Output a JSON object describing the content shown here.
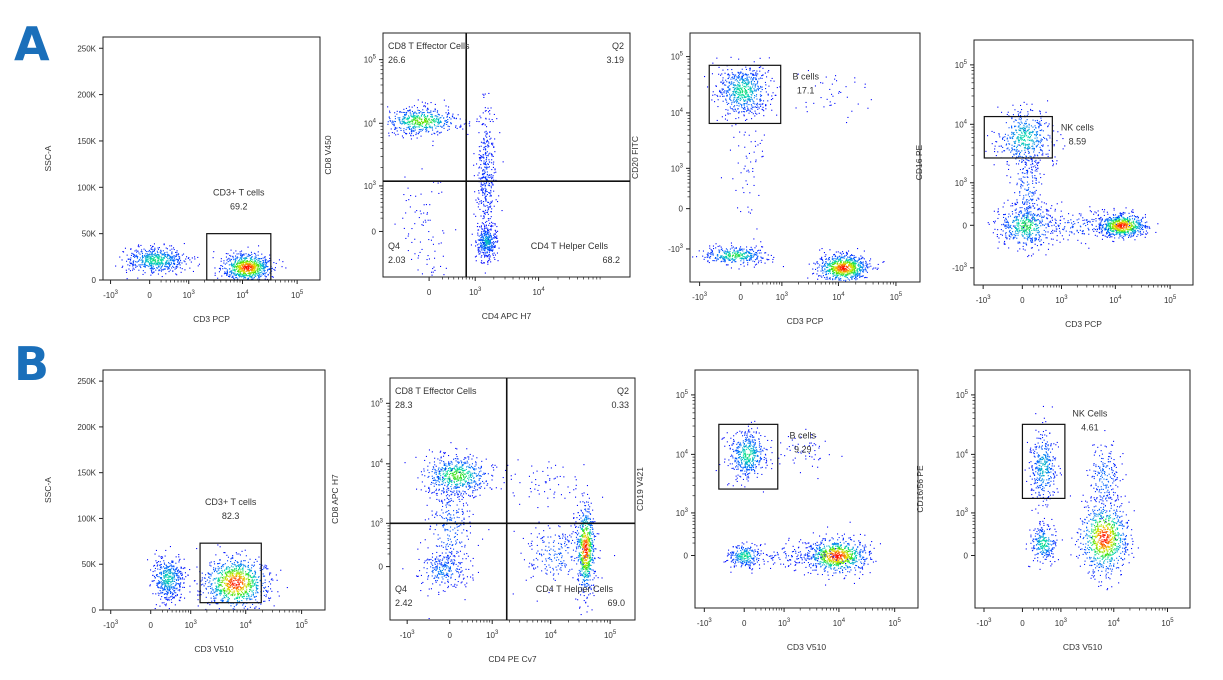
{
  "colors": {
    "letter": "#1a6fba",
    "frame": "#222222"
  },
  "chart_data": [
    {
      "type": "scatter",
      "row": "A",
      "letter": "A",
      "xlabel": "CD3 PCP",
      "ylabel": "SSC-A",
      "xscale": "log",
      "yscale": "linear",
      "xlim": [
        -1400,
        262144
      ],
      "ylim": [
        0,
        262144
      ],
      "xticks": [
        -1000,
        0,
        1000,
        10000,
        100000
      ],
      "yticks": [
        0,
        50000,
        100000,
        150000,
        200000,
        250000
      ],
      "populations": [
        {
          "x": 100,
          "y": 22000,
          "sx": 0.28,
          "sy": 7000,
          "n": 550,
          "w": 0.55
        },
        {
          "x": 12000,
          "y": 14000,
          "sx": 0.22,
          "sy": 7500,
          "n": 750,
          "w": 1
        }
      ],
      "gates": [
        {
          "type": "rect",
          "name": "CD3+ T cells",
          "value": "69.2",
          "x": [
            2200,
            33000
          ],
          "y": [
            0,
            50000
          ],
          "label": "above"
        }
      ]
    },
    {
      "type": "scatter",
      "row": "A",
      "xlabel": "CD4 APC H7",
      "ylabel": "CD8 V450",
      "xscale": "log",
      "yscale": "log",
      "xlim": [
        -1000,
        262144
      ],
      "ylim": [
        -1000,
        262144
      ],
      "xticks": [
        0,
        1000,
        10000
      ],
      "yticks": [
        0,
        1000,
        10000,
        100000
      ],
      "populations": [
        {
          "x": -120,
          "y": 11000,
          "sx": 0.28,
          "sy": 0.1,
          "n": 500,
          "w": 0.7
        },
        {
          "x": 1500,
          "y": -150,
          "sx": 0.08,
          "sy": 0.12,
          "n": 350,
          "w": 0.45
        },
        {
          "x": 1500,
          "y": 1500,
          "sx": 0.08,
          "sy": 0.55,
          "n": 380,
          "w": 0.15
        },
        {
          "x": -80,
          "y": -50,
          "sx": 0.18,
          "sy": 0.5,
          "n": 90,
          "w": 0.05
        }
      ],
      "quadrant": {
        "x": 700,
        "y": 1200
      },
      "gates": [
        {
          "type": "quad",
          "name": "CD8 T Effector Cells",
          "value": "26.6",
          "corner": "top-left"
        },
        {
          "type": "quad",
          "name": "Q2",
          "value": "3.19",
          "corner": "top-right"
        },
        {
          "type": "quad",
          "name": "Q4",
          "value": "2.03",
          "corner": "bottom-left"
        },
        {
          "type": "quad",
          "name": "CD4 T Helper Cells",
          "value": "68.2",
          "corner": "bottom-right"
        }
      ]
    },
    {
      "type": "scatter",
      "row": "A",
      "xlabel": "CD3 PCP",
      "ylabel": "CD20 FITC",
      "xscale": "log",
      "yscale": "log",
      "xlim": [
        -1500,
        262144
      ],
      "ylim": [
        -4000,
        262144
      ],
      "xticks": [
        -1000,
        0,
        1000,
        10000,
        100000
      ],
      "yticks": [
        -1000,
        0,
        1000,
        10000,
        100000
      ],
      "populations": [
        {
          "x": 30,
          "y": 25000,
          "sx": 0.22,
          "sy": 0.22,
          "n": 600,
          "w": 0.55
        },
        {
          "x": -100,
          "y": -1300,
          "sx": 0.28,
          "sy": 0.08,
          "n": 350,
          "w": 0.6
        },
        {
          "x": 12000,
          "y": -2200,
          "sx": 0.22,
          "sy": 0.12,
          "n": 750,
          "w": 1
        },
        {
          "x": 8000,
          "y": 20000,
          "sx": 0.35,
          "sy": 0.25,
          "n": 40,
          "w": 0.05
        },
        {
          "x": 100,
          "y": 1500,
          "sx": 0.15,
          "sy": 0.6,
          "n": 60,
          "w": 0.05
        }
      ],
      "gates": [
        {
          "type": "rect",
          "name": "B cells",
          "value": "17.1",
          "x": [
            -650,
            950
          ],
          "y": [
            6500,
            70000
          ],
          "label": "right"
        }
      ]
    },
    {
      "type": "scatter",
      "row": "A",
      "xlabel": "CD3 PCP",
      "ylabel": "CD16 PE",
      "xscale": "log",
      "yscale": "log",
      "xlim": [
        -1500,
        262144
      ],
      "ylim": [
        -2000,
        262144
      ],
      "xticks": [
        -1000,
        0,
        1000,
        10000,
        100000
      ],
      "yticks": [
        -1000,
        0,
        1000,
        10000,
        100000
      ],
      "populations": [
        {
          "x": 30,
          "y": 6000,
          "sx": 0.25,
          "sy": 0.25,
          "n": 450,
          "w": 0.5
        },
        {
          "x": 80,
          "y": 700,
          "sx": 0.15,
          "sy": 0.35,
          "n": 200,
          "w": 0.25
        },
        {
          "x": 60,
          "y": 0,
          "sx": 0.25,
          "sy": 0.18,
          "n": 450,
          "w": 0.6
        },
        {
          "x": 13000,
          "y": 0,
          "sx": 0.22,
          "sy": 0.1,
          "n": 700,
          "w": 1
        },
        {
          "x": 2000,
          "y": 0,
          "sx": 0.4,
          "sy": 0.12,
          "n": 150,
          "w": 0.2
        }
      ],
      "gates": [
        {
          "type": "rect",
          "name": "NK cells",
          "value": "8.59",
          "x": [
            -950,
            650
          ],
          "y": [
            2700,
            13500
          ],
          "label": "right"
        }
      ]
    },
    {
      "type": "scatter",
      "row": "B",
      "letter": "B",
      "xlabel": "CD3 V510",
      "ylabel": "SSC-A",
      "xscale": "log",
      "yscale": "linear",
      "xlim": [
        -1400,
        262144
      ],
      "ylim": [
        0,
        262144
      ],
      "xticks": [
        -1000,
        0,
        1000,
        10000,
        100000
      ],
      "yticks": [
        0,
        50000,
        100000,
        150000,
        200000,
        250000
      ],
      "populations": [
        {
          "x": 300,
          "y": 35000,
          "sx": 0.14,
          "sy": 12000,
          "n": 450,
          "w": 0.5
        },
        {
          "x": 6500,
          "y": 30000,
          "sx": 0.28,
          "sy": 14000,
          "n": 850,
          "w": 1
        }
      ],
      "gates": [
        {
          "type": "rect",
          "name": "CD3+ T cells",
          "value": "82.3",
          "x": [
            1500,
            19000
          ],
          "y": [
            8000,
            73000
          ],
          "label": "above"
        }
      ]
    },
    {
      "type": "scatter",
      "row": "B",
      "xlabel": "CD4 PE Cv7",
      "ylabel": "CD8 APC H7",
      "xscale": "log",
      "yscale": "log",
      "xlim": [
        -2000,
        262144
      ],
      "ylim": [
        -1500,
        262144
      ],
      "xticks": [
        -1000,
        0,
        1000,
        10000,
        100000
      ],
      "yticks": [
        0,
        1000,
        10000,
        100000
      ],
      "quadrant": {
        "x": 1800,
        "y": 1000
      },
      "populations": [
        {
          "x": 100,
          "y": 6500,
          "sx": 0.28,
          "sy": 0.16,
          "n": 550,
          "w": 0.65
        },
        {
          "x": 0,
          "y": 800,
          "sx": 0.18,
          "sy": 0.5,
          "n": 300,
          "w": 0.25
        },
        {
          "x": -100,
          "y": -50,
          "sx": 0.2,
          "sy": 0.15,
          "n": 200,
          "w": 0.35
        },
        {
          "x": 38000,
          "y": 300,
          "sx": 0.08,
          "sy": 0.35,
          "n": 650,
          "w": 1
        },
        {
          "x": 12000,
          "y": 200,
          "sx": 0.25,
          "sy": 0.25,
          "n": 200,
          "w": 0.25
        },
        {
          "x": 8000,
          "y": 5000,
          "sx": 0.35,
          "sy": 0.2,
          "n": 60,
          "w": 0.05
        }
      ],
      "gates": [
        {
          "type": "quad",
          "name": "CD8 T Effector Cells",
          "value": "28.3",
          "corner": "top-left"
        },
        {
          "type": "quad",
          "name": "Q2",
          "value": "0.33",
          "corner": "top-right"
        },
        {
          "type": "quad",
          "name": "Q4",
          "value": "2.42",
          "corner": "bottom-left"
        },
        {
          "type": "quad",
          "name": "CD4 T Helper Cells",
          "value": "69.0",
          "corner": "bottom-right"
        }
      ]
    },
    {
      "type": "scatter",
      "row": "B",
      "xlabel": "CD3 V510",
      "ylabel": "CD19 V421",
      "xscale": "log",
      "yscale": "log",
      "xlim": [
        -1500,
        262144
      ],
      "ylim": [
        -1500,
        262144
      ],
      "xticks": [
        -1000,
        0,
        1000,
        10000,
        100000
      ],
      "yticks": [
        0,
        1000,
        10000,
        100000
      ],
      "populations": [
        {
          "x": 50,
          "y": 10000,
          "sx": 0.17,
          "sy": 0.2,
          "n": 450,
          "w": 0.55
        },
        {
          "x": 0,
          "y": 0,
          "sx": 0.15,
          "sy": 0.1,
          "n": 250,
          "w": 0.55
        },
        {
          "x": 9000,
          "y": 0,
          "sx": 0.28,
          "sy": 0.14,
          "n": 800,
          "w": 1
        },
        {
          "x": 1500,
          "y": 0,
          "sx": 0.4,
          "sy": 0.1,
          "n": 120,
          "w": 0.15
        },
        {
          "x": 2000,
          "y": 12000,
          "sx": 0.4,
          "sy": 0.15,
          "n": 60,
          "w": 0.05
        }
      ],
      "gates": [
        {
          "type": "rect",
          "name": "B cells",
          "value": "9.29",
          "x": [
            -500,
            750
          ],
          "y": [
            2600,
            32000
          ],
          "label": "right"
        }
      ]
    },
    {
      "type": "scatter",
      "row": "B",
      "xlabel": "CD3 V510",
      "ylabel": "CD16/56 PE",
      "xscale": "log",
      "yscale": "log",
      "xlim": [
        -1500,
        262144
      ],
      "ylim": [
        -1500,
        262144
      ],
      "xticks": [
        -1000,
        0,
        1000,
        10000,
        100000
      ],
      "yticks": [
        0,
        1000,
        10000,
        100000
      ],
      "populations": [
        {
          "x": 400,
          "y": 6000,
          "sx": 0.12,
          "sy": 0.3,
          "n": 350,
          "w": 0.45
        },
        {
          "x": 400,
          "y": 200,
          "sx": 0.12,
          "sy": 0.15,
          "n": 250,
          "w": 0.55
        },
        {
          "x": 6500,
          "y": 300,
          "sx": 0.22,
          "sy": 0.3,
          "n": 800,
          "w": 1
        },
        {
          "x": 6500,
          "y": 4000,
          "sx": 0.15,
          "sy": 0.3,
          "n": 200,
          "w": 0.3
        }
      ],
      "gates": [
        {
          "type": "rect",
          "name": "NK Cells",
          "value": "4.61",
          "x": [
            0,
            1200
          ],
          "y": [
            1800,
            32000
          ],
          "label": "above-right"
        }
      ]
    }
  ]
}
